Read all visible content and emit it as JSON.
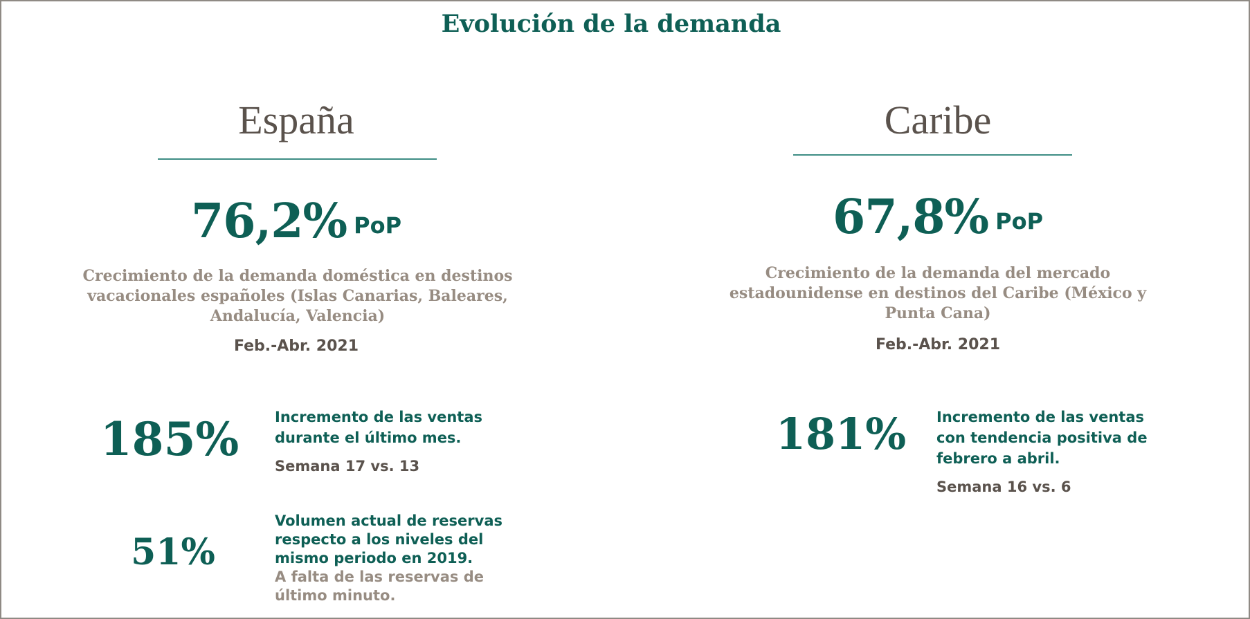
{
  "title": "Evolución de la demanda",
  "spain": {
    "region": "España",
    "headline_value": "76,2%",
    "headline_unit": "PoP",
    "description": "Crecimiento de la demanda doméstica en destinos vacacionales españoles (Islas Canarias, Baleares, Andalucía, Valencia)",
    "period": "Feb.-Abr. 2021",
    "kpis": [
      {
        "value": "185%",
        "description": "Incremento de las ventas durante el último mes.",
        "subtext": "Semana 17 vs. 13"
      },
      {
        "value": "51%",
        "description": "Volumen actual de reservas respecto a los niveles del mismo periodo en 2019.",
        "note": "A falta de las reservas de último minuto."
      }
    ]
  },
  "caribe": {
    "region": "Caribe",
    "headline_value": "67,8%",
    "headline_unit": "PoP",
    "description": "Crecimiento de la demanda del mercado estadounidense en destinos del Caribe (México y Punta Cana)",
    "period": "Feb.-Abr. 2021",
    "kpis": [
      {
        "value": "181%",
        "description": "Incremento de las ventas con tendencia positiva de febrero a abril.",
        "subtext": "Semana 16 vs. 6"
      }
    ]
  },
  "colors": {
    "accent": "#0e5f55",
    "heading_gray": "#5a524c",
    "description_gray": "#978c82",
    "rule": "#3d8d84",
    "frame_border": "#8f8a84"
  }
}
